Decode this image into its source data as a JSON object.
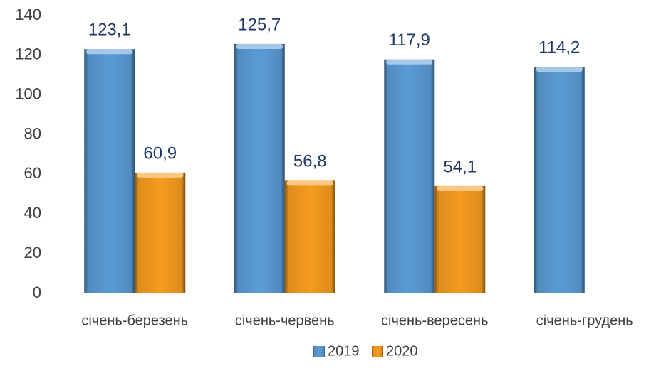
{
  "chart_data": {
    "type": "bar",
    "categories": [
      "січень-березень",
      "січень-червень",
      "січень-вересень",
      "січень-грудень"
    ],
    "series": [
      {
        "name": "2019",
        "color": "#5b9bd5",
        "values": [
          123.1,
          125.7,
          117.9,
          114.2
        ],
        "value_labels": [
          "123,1",
          "125,7",
          "117,9",
          "114,2"
        ]
      },
      {
        "name": "2020",
        "color": "#f59b1f",
        "values": [
          60.9,
          56.8,
          54.1,
          null
        ],
        "value_labels": [
          "60,9",
          "56,8",
          "54,1",
          null
        ]
      }
    ],
    "ylim": [
      0,
      140
    ],
    "yticks": [
      0,
      20,
      40,
      60,
      80,
      100,
      120,
      140
    ],
    "grid": false,
    "legend": "bottom"
  }
}
